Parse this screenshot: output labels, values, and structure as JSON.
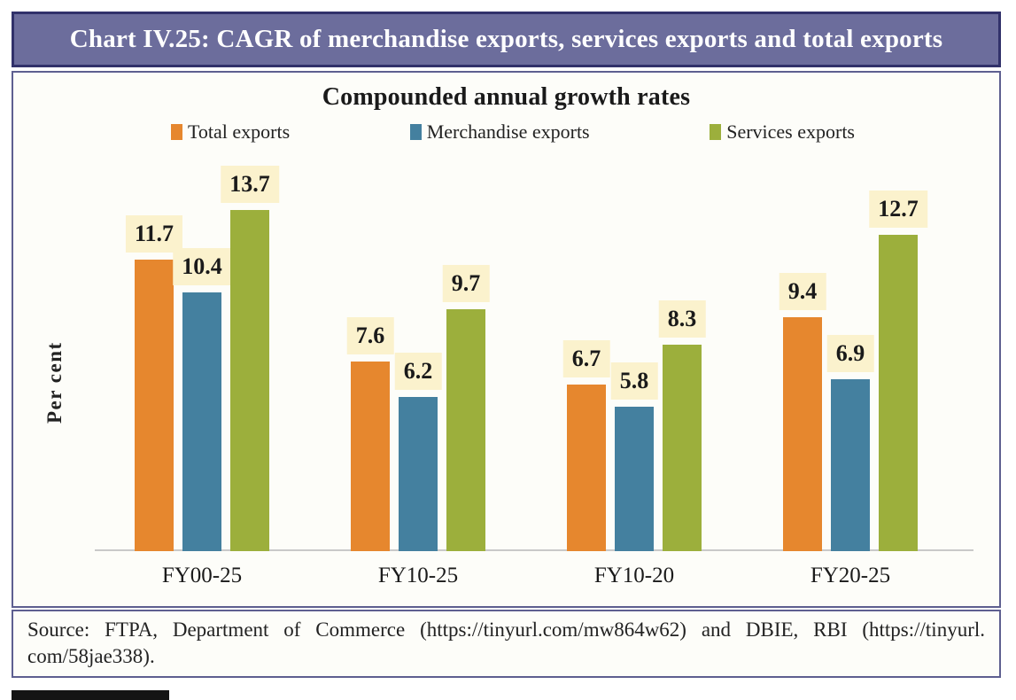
{
  "header": {
    "title": "Chart IV.25: CAGR of merchandise exports, services exports and total exports"
  },
  "chart_data": {
    "type": "bar",
    "title": "Compounded annual growth rates",
    "ylabel": "Per cent",
    "xlabel": "",
    "categories": [
      "FY00-25",
      "FY10-25",
      "FY10-20",
      "FY20-25"
    ],
    "series": [
      {
        "name": "Total exports",
        "color": "#E6872E",
        "values": [
          11.7,
          7.6,
          6.7,
          9.4
        ]
      },
      {
        "name": "Merchandise exports",
        "color": "#44809F",
        "values": [
          10.4,
          6.2,
          5.8,
          6.9
        ]
      },
      {
        "name": "Services exports",
        "color": "#9CAF3C",
        "values": [
          13.7,
          9.7,
          8.3,
          12.7
        ]
      }
    ],
    "ylim": [
      0,
      14
    ],
    "grid": false,
    "legend_position": "top",
    "data_labels": true,
    "data_label_bg": "#FBF2CD"
  },
  "source": {
    "lines": [
      "Source: FTPA, Department of Commerce (https://tinyurl.com/mw864w62) and DBIE, RBI (https://tinyurl.",
      "com/58jae338)."
    ]
  },
  "colors": {
    "title_bar_bg": "#6C6D9C",
    "title_bar_border": "#31316A",
    "box_border": "#5E5F90",
    "data_label_bg": "#FBF2CD",
    "axis_line": "#C9C9C9"
  }
}
